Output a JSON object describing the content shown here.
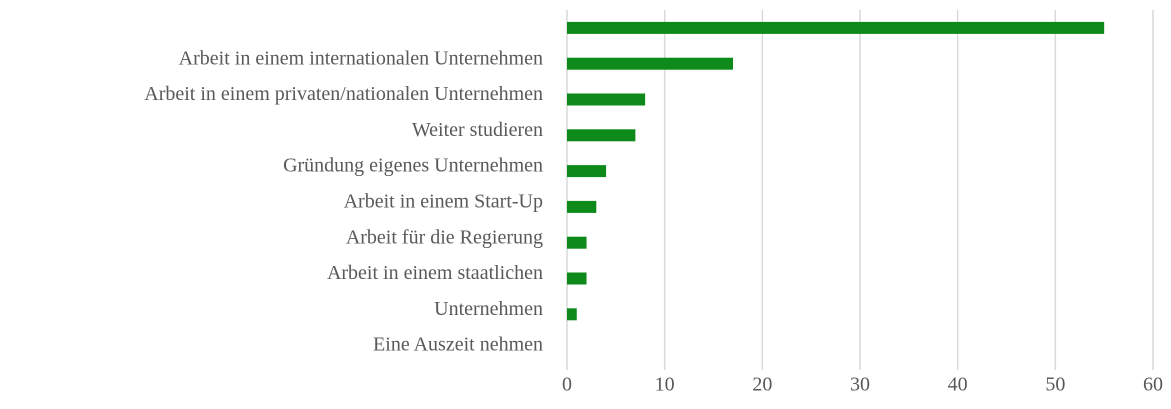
{
  "chart_data": {
    "type": "hbar",
    "categories": [
      null,
      "Arbeit in einem internationalen Unternehmen",
      "Arbeit in einem privaten/nationalen Unternehmen",
      "Weiter studieren",
      "Gründung eigenes Unternehmen",
      "Arbeit in einem Start-Up",
      "Arbeit für die Regierung",
      "Arbeit in einem staatlichen",
      "Unternehmen",
      "Eine Auszeit nehmen"
    ],
    "values": [
      55,
      17,
      8,
      7,
      4,
      3,
      2,
      2,
      1,
      0
    ],
    "color": "#0e8a1a",
    "xlim": [
      0,
      60
    ],
    "xticks": [
      0,
      10,
      20,
      30,
      40,
      50,
      60
    ],
    "grid": true
  }
}
